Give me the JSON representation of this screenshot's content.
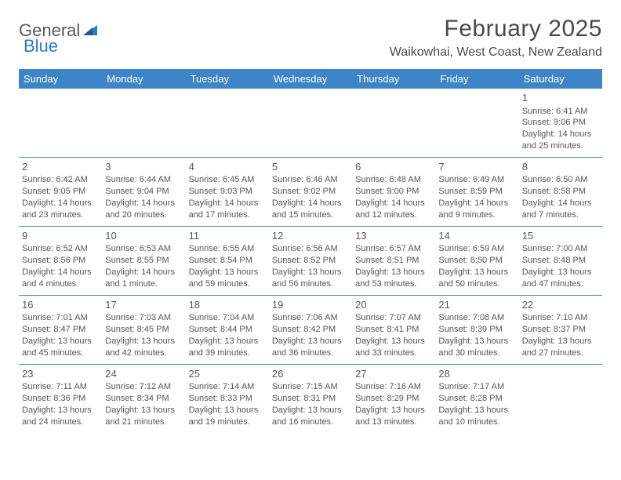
{
  "logo": {
    "text1": "General",
    "text2": "Blue"
  },
  "title": "February 2025",
  "location": "Waikowhai, West Coast, New Zealand",
  "colors": {
    "header_bg": "#3d85c6",
    "header_text": "#ffffff",
    "cell_border": "#3d85c6",
    "body_text": "#555555",
    "logo_gray": "#5a5a5a",
    "logo_blue": "#2f7bbf"
  },
  "weekdays": [
    "Sunday",
    "Monday",
    "Tuesday",
    "Wednesday",
    "Thursday",
    "Friday",
    "Saturday"
  ],
  "weeks": [
    [
      null,
      null,
      null,
      null,
      null,
      null,
      {
        "n": "1",
        "sr": "Sunrise: 6:41 AM",
        "ss": "Sunset: 9:06 PM",
        "d1": "Daylight: 14 hours",
        "d2": "and 25 minutes."
      }
    ],
    [
      {
        "n": "2",
        "sr": "Sunrise: 6:42 AM",
        "ss": "Sunset: 9:05 PM",
        "d1": "Daylight: 14 hours",
        "d2": "and 23 minutes."
      },
      {
        "n": "3",
        "sr": "Sunrise: 6:44 AM",
        "ss": "Sunset: 9:04 PM",
        "d1": "Daylight: 14 hours",
        "d2": "and 20 minutes."
      },
      {
        "n": "4",
        "sr": "Sunrise: 6:45 AM",
        "ss": "Sunset: 9:03 PM",
        "d1": "Daylight: 14 hours",
        "d2": "and 17 minutes."
      },
      {
        "n": "5",
        "sr": "Sunrise: 6:46 AM",
        "ss": "Sunset: 9:02 PM",
        "d1": "Daylight: 14 hours",
        "d2": "and 15 minutes."
      },
      {
        "n": "6",
        "sr": "Sunrise: 6:48 AM",
        "ss": "Sunset: 9:00 PM",
        "d1": "Daylight: 14 hours",
        "d2": "and 12 minutes."
      },
      {
        "n": "7",
        "sr": "Sunrise: 6:49 AM",
        "ss": "Sunset: 8:59 PM",
        "d1": "Daylight: 14 hours",
        "d2": "and 9 minutes."
      },
      {
        "n": "8",
        "sr": "Sunrise: 6:50 AM",
        "ss": "Sunset: 8:58 PM",
        "d1": "Daylight: 14 hours",
        "d2": "and 7 minutes."
      }
    ],
    [
      {
        "n": "9",
        "sr": "Sunrise: 6:52 AM",
        "ss": "Sunset: 8:56 PM",
        "d1": "Daylight: 14 hours",
        "d2": "and 4 minutes."
      },
      {
        "n": "10",
        "sr": "Sunrise: 6:53 AM",
        "ss": "Sunset: 8:55 PM",
        "d1": "Daylight: 14 hours",
        "d2": "and 1 minute."
      },
      {
        "n": "11",
        "sr": "Sunrise: 6:55 AM",
        "ss": "Sunset: 8:54 PM",
        "d1": "Daylight: 13 hours",
        "d2": "and 59 minutes."
      },
      {
        "n": "12",
        "sr": "Sunrise: 6:56 AM",
        "ss": "Sunset: 8:52 PM",
        "d1": "Daylight: 13 hours",
        "d2": "and 56 minutes."
      },
      {
        "n": "13",
        "sr": "Sunrise: 6:57 AM",
        "ss": "Sunset: 8:51 PM",
        "d1": "Daylight: 13 hours",
        "d2": "and 53 minutes."
      },
      {
        "n": "14",
        "sr": "Sunrise: 6:59 AM",
        "ss": "Sunset: 8:50 PM",
        "d1": "Daylight: 13 hours",
        "d2": "and 50 minutes."
      },
      {
        "n": "15",
        "sr": "Sunrise: 7:00 AM",
        "ss": "Sunset: 8:48 PM",
        "d1": "Daylight: 13 hours",
        "d2": "and 47 minutes."
      }
    ],
    [
      {
        "n": "16",
        "sr": "Sunrise: 7:01 AM",
        "ss": "Sunset: 8:47 PM",
        "d1": "Daylight: 13 hours",
        "d2": "and 45 minutes."
      },
      {
        "n": "17",
        "sr": "Sunrise: 7:03 AM",
        "ss": "Sunset: 8:45 PM",
        "d1": "Daylight: 13 hours",
        "d2": "and 42 minutes."
      },
      {
        "n": "18",
        "sr": "Sunrise: 7:04 AM",
        "ss": "Sunset: 8:44 PM",
        "d1": "Daylight: 13 hours",
        "d2": "and 39 minutes."
      },
      {
        "n": "19",
        "sr": "Sunrise: 7:06 AM",
        "ss": "Sunset: 8:42 PM",
        "d1": "Daylight: 13 hours",
        "d2": "and 36 minutes."
      },
      {
        "n": "20",
        "sr": "Sunrise: 7:07 AM",
        "ss": "Sunset: 8:41 PM",
        "d1": "Daylight: 13 hours",
        "d2": "and 33 minutes."
      },
      {
        "n": "21",
        "sr": "Sunrise: 7:08 AM",
        "ss": "Sunset: 8:39 PM",
        "d1": "Daylight: 13 hours",
        "d2": "and 30 minutes."
      },
      {
        "n": "22",
        "sr": "Sunrise: 7:10 AM",
        "ss": "Sunset: 8:37 PM",
        "d1": "Daylight: 13 hours",
        "d2": "and 27 minutes."
      }
    ],
    [
      {
        "n": "23",
        "sr": "Sunrise: 7:11 AM",
        "ss": "Sunset: 8:36 PM",
        "d1": "Daylight: 13 hours",
        "d2": "and 24 minutes."
      },
      {
        "n": "24",
        "sr": "Sunrise: 7:12 AM",
        "ss": "Sunset: 8:34 PM",
        "d1": "Daylight: 13 hours",
        "d2": "and 21 minutes."
      },
      {
        "n": "25",
        "sr": "Sunrise: 7:14 AM",
        "ss": "Sunset: 8:33 PM",
        "d1": "Daylight: 13 hours",
        "d2": "and 19 minutes."
      },
      {
        "n": "26",
        "sr": "Sunrise: 7:15 AM",
        "ss": "Sunset: 8:31 PM",
        "d1": "Daylight: 13 hours",
        "d2": "and 16 minutes."
      },
      {
        "n": "27",
        "sr": "Sunrise: 7:16 AM",
        "ss": "Sunset: 8:29 PM",
        "d1": "Daylight: 13 hours",
        "d2": "and 13 minutes."
      },
      {
        "n": "28",
        "sr": "Sunrise: 7:17 AM",
        "ss": "Sunset: 8:28 PM",
        "d1": "Daylight: 13 hours",
        "d2": "and 10 minutes."
      },
      null
    ]
  ]
}
